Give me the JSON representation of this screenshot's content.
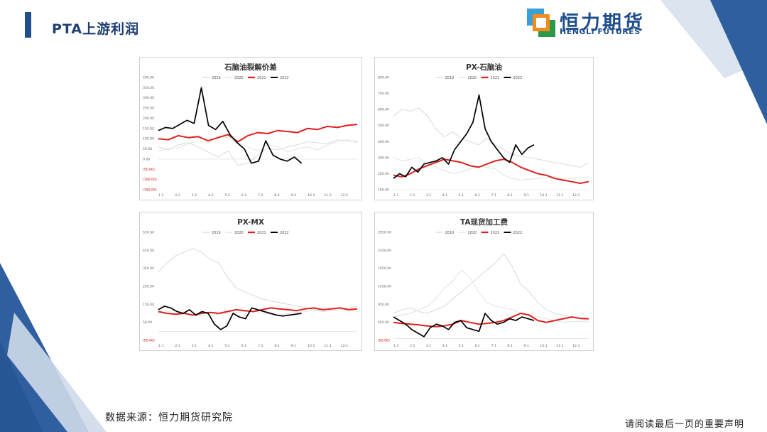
{
  "header": {
    "title": "PTA上游利润",
    "logo_cn": "恒力期货",
    "logo_en": "HENGLI FUTURES"
  },
  "footer": {
    "source": "数据来源：恒力期货研究院",
    "disclaimer": "请阅读最后一页的重要声明"
  },
  "colors": {
    "2019": "#d0d0d8",
    "2020": "#cfe3cf",
    "2021": "#e02020",
    "2022": "#000000",
    "accent": "#1f4e8c"
  },
  "chart_data": [
    {
      "type": "line",
      "title": "石脑油裂解价差",
      "legend": [
        "2019",
        "2020",
        "2021",
        "2022"
      ],
      "y_ticks": [
        "400.00",
        "350.00",
        "300.00",
        "250.00",
        "200.00",
        "150.00",
        "100.00",
        "50.00",
        "0.00",
        "(50.00)",
        "(100.00)",
        "(150.00)"
      ],
      "ylim": [
        -150,
        400
      ],
      "x_ticks": [
        "1-2",
        "2-2",
        "3-2",
        "4-2",
        "5-2",
        "6-2",
        "7-2",
        "8-2",
        "9-2",
        "10-2",
        "11-2",
        "12-2"
      ],
      "series": [
        {
          "name": "2019",
          "values": [
            60,
            45,
            70,
            80,
            60,
            35,
            10,
            40,
            -30,
            -20,
            20,
            55,
            45,
            60,
            70,
            85,
            80,
            75,
            95,
            90,
            85
          ]
        },
        {
          "name": "2020",
          "values": [
            40,
            50,
            55,
            75,
            90,
            80,
            110,
            105,
            80,
            60,
            40,
            70,
            60,
            35,
            50,
            60,
            45,
            70,
            85,
            95,
            80
          ]
        },
        {
          "name": "2021",
          "values": [
            100,
            95,
            115,
            105,
            110,
            90,
            105,
            120,
            85,
            115,
            130,
            125,
            140,
            135,
            130,
            150,
            145,
            160,
            155,
            165,
            170
          ]
        },
        {
          "name": "2022",
          "values": [
            140,
            155,
            150,
            170,
            190,
            175,
            350,
            165,
            145,
            185,
            120,
            80,
            50,
            -20,
            -10,
            90,
            20,
            0,
            -10,
            10,
            -20
          ]
        }
      ]
    },
    {
      "type": "line",
      "title": "PX-石脑油",
      "legend": [
        "2019",
        "2020",
        "2021",
        "2022"
      ],
      "y_ticks": [
        "800.00",
        "700.00",
        "600.00",
        "500.00",
        "400.00",
        "300.00",
        "200.00",
        "100.00"
      ],
      "ylim": [
        100,
        800
      ],
      "x_ticks": [
        "1-1",
        "2-1",
        "3-1",
        "4-1",
        "5-1",
        "6-1",
        "7-1",
        "8-1",
        "9-1",
        "10-1",
        "11-1",
        "12-1"
      ],
      "series": [
        {
          "name": "2019",
          "values": [
            560,
            600,
            590,
            610,
            560,
            480,
            430,
            460,
            420,
            400,
            380,
            420,
            380,
            350,
            320,
            310,
            300,
            290,
            280,
            270,
            260,
            250,
            240,
            270
          ]
        },
        {
          "name": "2020",
          "values": [
            300,
            280,
            290,
            300,
            260,
            240,
            220,
            200,
            210,
            230,
            250,
            240,
            230,
            190,
            170,
            160,
            165,
            170,
            175,
            180,
            165,
            170,
            175,
            180
          ]
        },
        {
          "name": "2021",
          "values": [
            190,
            180,
            200,
            230,
            250,
            270,
            290,
            280,
            270,
            250,
            240,
            260,
            280,
            290,
            270,
            240,
            220,
            200,
            190,
            170,
            160,
            150,
            140,
            150
          ]
        },
        {
          "name": "2022",
          "values": [
            170,
            200,
            180,
            240,
            210,
            260,
            270,
            280,
            300,
            260,
            350,
            400,
            450,
            520,
            690,
            480,
            400,
            350,
            300,
            270,
            380,
            320,
            360,
            380
          ]
        }
      ]
    },
    {
      "type": "line",
      "title": "PX-MX",
      "legend": [
        "2019",
        "2020",
        "2021",
        "2022"
      ],
      "y_ticks": [
        "550.00",
        "450.00",
        "350.00",
        "250.00",
        "150.00",
        "50.00",
        "(50.00)"
      ],
      "ylim": [
        -50,
        550
      ],
      "x_ticks": [
        "1-1",
        "2-1",
        "3-1",
        "4-1",
        "5-1",
        "6-1",
        "7-1",
        "8-1",
        "9-1",
        "10-1",
        "11-1",
        "12-1"
      ],
      "series": [
        {
          "name": "2019",
          "values": [
            330,
            380,
            420,
            440,
            460,
            440,
            400,
            380,
            300,
            240,
            220,
            200,
            180,
            170,
            160,
            150,
            140,
            130,
            120,
            110,
            115,
            120,
            130,
            140
          ]
        },
        {
          "name": "2020",
          "values": [
            100,
            110,
            115,
            100,
            90,
            85,
            90,
            95,
            100,
            105,
            110,
            115,
            100,
            95,
            90,
            100,
            105,
            110,
            115,
            120,
            125,
            130,
            120,
            110
          ]
        },
        {
          "name": "2021",
          "values": [
            110,
            100,
            95,
            100,
            90,
            100,
            105,
            100,
            110,
            120,
            115,
            110,
            120,
            130,
            125,
            120,
            115,
            125,
            130,
            120,
            125,
            130,
            120,
            125
          ]
        },
        {
          "name": "2022",
          "values": [
            120,
            140,
            130,
            110,
            100,
            120,
            90,
            110,
            100,
            40,
            10,
            30,
            100,
            80,
            70,
            130,
            120,
            110,
            100,
            90,
            85,
            90,
            95,
            100
          ]
        }
      ]
    },
    {
      "type": "line",
      "title": "TA现货加工费",
      "legend": [
        "2019",
        "2020",
        "2021",
        "2022"
      ],
      "y_ticks": [
        "2950.00",
        "2450.00",
        "1950.00",
        "1450.00",
        "950.00",
        "450.00",
        "(50.00)"
      ],
      "ylim": [
        -50,
        2950
      ],
      "x_ticks": [
        "1-1",
        "2-1",
        "3-1",
        "4-1",
        "5-1",
        "6-1",
        "7-1",
        "8-1",
        "9-1",
        "10-1",
        "11-1",
        "12-1"
      ],
      "series": [
        {
          "name": "2019",
          "values": [
            700,
            800,
            850,
            750,
            700,
            800,
            900,
            1100,
            1300,
            1500,
            1700,
            1900,
            2100,
            2350,
            2000,
            1500,
            1300,
            1000,
            800,
            700,
            650,
            600,
            550,
            500
          ]
        },
        {
          "name": "2020",
          "values": [
            600,
            650,
            700,
            800,
            900,
            1100,
            1400,
            1600,
            1900,
            1700,
            1300,
            1000,
            900,
            850,
            800,
            700,
            650,
            600,
            550,
            500,
            450,
            480,
            470,
            460
          ]
        },
        {
          "name": "2021",
          "values": [
            450,
            420,
            400,
            380,
            350,
            330,
            350,
            400,
            500,
            450,
            400,
            420,
            450,
            500,
            600,
            700,
            650,
            500,
            450,
            500,
            550,
            600,
            560,
            550
          ]
        },
        {
          "name": "2022",
          "values": [
            600,
            500,
            400,
            250,
            150,
            50,
            300,
            400,
            350,
            250,
            450,
            500,
            300,
            250,
            200,
            700,
            500,
            400,
            450,
            550,
            500,
            600,
            550,
            500
          ]
        }
      ]
    }
  ]
}
